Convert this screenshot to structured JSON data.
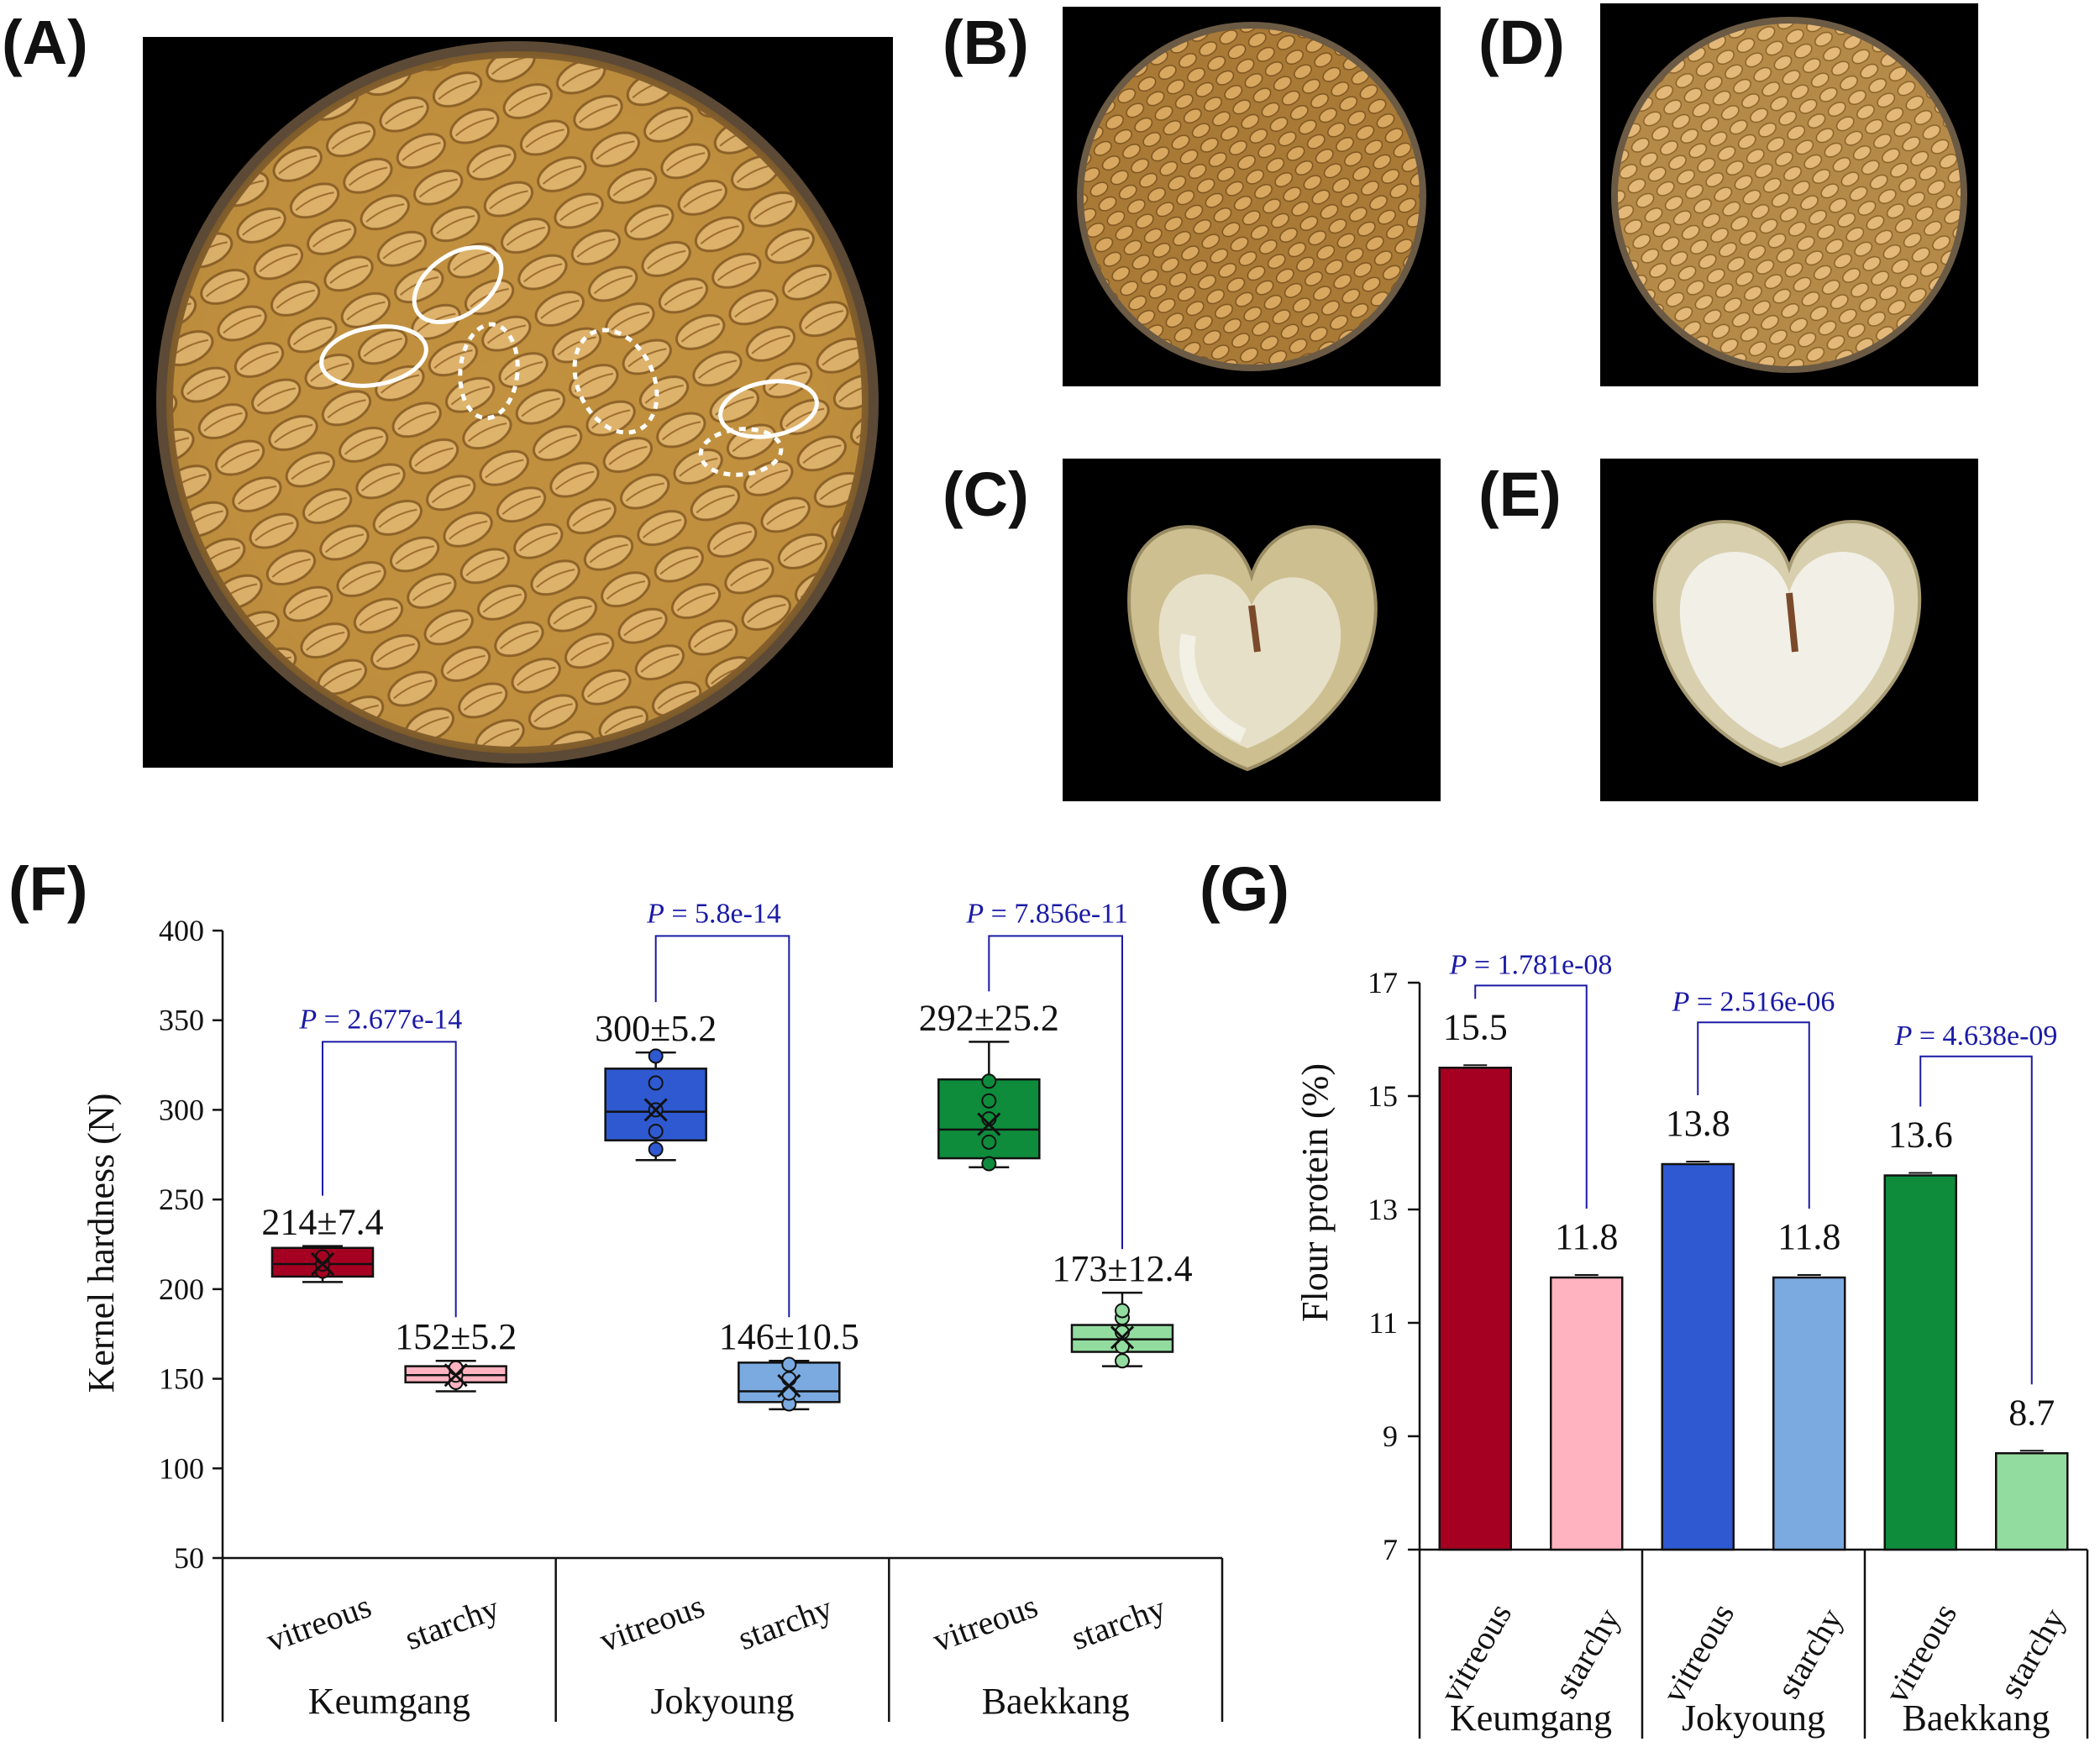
{
  "panels": {
    "A": "(A)",
    "B": "(B)",
    "C": "(C)",
    "D": "(D)",
    "E": "(E)",
    "F": "(F)",
    "G": "(G)"
  },
  "photos": {
    "A": "wheat kernels in petri dish with vitreous kernels circled (solid) and starchy kernels circled (dotted)",
    "B": "vitreous kernels in petri dish",
    "C": "cross-section of vitreous kernel",
    "D": "starchy kernels in petri dish",
    "E": "cross-section of starchy kernel"
  },
  "chart_data": [
    {
      "id": "F",
      "type": "box",
      "ylabel": "Kernel hardness (N)",
      "ylim": [
        50,
        400
      ],
      "yticks": [
        50,
        100,
        150,
        200,
        250,
        300,
        350,
        400
      ],
      "groups": [
        "Keumgang",
        "Jokyoung",
        "Baekkang"
      ],
      "categories": [
        "vitreous",
        "starchy",
        "vitreous",
        "starchy",
        "vitreous",
        "starchy"
      ],
      "colors": [
        "#a50021",
        "#ffb3c1",
        "#2e59d0",
        "#7aaae0",
        "#0e8c3c",
        "#93dca0"
      ],
      "boxes": [
        {
          "min": 204,
          "q1": 207,
          "median": 214,
          "q3": 223,
          "max": 224,
          "mean": 214,
          "points": [
            210,
            214,
            218
          ]
        },
        {
          "min": 143,
          "q1": 148,
          "median": 152,
          "q3": 157,
          "max": 160,
          "mean": 152,
          "points": [
            148,
            152,
            156
          ]
        },
        {
          "min": 272,
          "q1": 283,
          "median": 299,
          "q3": 323,
          "max": 332,
          "mean": 300,
          "points": [
            278,
            288,
            300,
            315,
            330
          ]
        },
        {
          "min": 133,
          "q1": 137,
          "median": 143,
          "q3": 159,
          "max": 160,
          "mean": 146,
          "points": [
            136,
            142,
            150,
            158
          ]
        },
        {
          "min": 268,
          "q1": 273,
          "median": 289,
          "q3": 317,
          "max": 338,
          "mean": 292,
          "points": [
            270,
            282,
            295,
            305,
            316
          ]
        },
        {
          "min": 157,
          "q1": 165,
          "median": 172,
          "q3": 180,
          "max": 198,
          "mean": 173,
          "points": [
            160,
            168,
            176,
            184,
            188
          ]
        }
      ],
      "value_labels": [
        "214±7.4",
        "152±5.2",
        "300±5.2",
        "146±10.5",
        "292±25.2",
        "173±12.4"
      ],
      "pvalues": [
        {
          "label": "P = 2.677e-14",
          "pair": [
            0,
            1
          ],
          "bracket_y": 338
        },
        {
          "label": "P = 5.8e-14",
          "pair": [
            2,
            3
          ],
          "bracket_y": 397
        },
        {
          "label": "P = 7.856e-11",
          "pair": [
            4,
            5
          ],
          "bracket_y": 397
        }
      ]
    },
    {
      "id": "G",
      "type": "bar",
      "ylabel": "Flour protein  (%)",
      "ylim": [
        7,
        17
      ],
      "yticks": [
        7,
        9,
        11,
        13,
        15,
        17
      ],
      "groups": [
        "Keumgang",
        "Jokyoung",
        "Baekkang"
      ],
      "categories": [
        "vitreous",
        "starchy",
        "vitreous",
        "starchy",
        "vitreous",
        "starchy"
      ],
      "values": [
        15.5,
        11.8,
        13.8,
        11.8,
        13.6,
        8.7
      ],
      "value_labels": [
        "15.5",
        "11.8",
        "13.8",
        "11.8",
        "13.6",
        "8.7"
      ],
      "colors": [
        "#a50021",
        "#ffb3c1",
        "#2e59d0",
        "#7aaae0",
        "#0e8c3c",
        "#93dca0"
      ],
      "pvalues": [
        {
          "label": "P = 1.781e-08",
          "pair": [
            0,
            1
          ],
          "bracket_y": 16.95
        },
        {
          "label": "P = 2.516e-06",
          "pair": [
            2,
            3
          ],
          "bracket_y": 16.3
        },
        {
          "label": "P = 4.638e-09",
          "pair": [
            4,
            5
          ],
          "bracket_y": 15.7
        }
      ]
    }
  ]
}
